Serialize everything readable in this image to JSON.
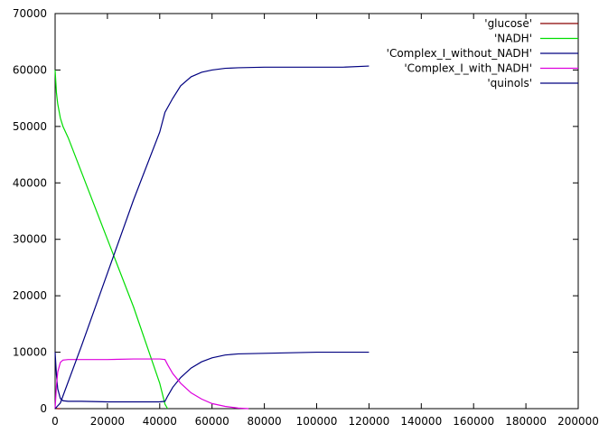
{
  "chart_data": {
    "type": "line",
    "title": "",
    "xlabel": "",
    "ylabel": "",
    "xlim": [
      0,
      200000
    ],
    "ylim": [
      0,
      70000
    ],
    "x_ticks": [
      0,
      20000,
      40000,
      60000,
      80000,
      100000,
      120000,
      140000,
      160000,
      180000,
      200000
    ],
    "y_ticks": [
      0,
      10000,
      20000,
      30000,
      40000,
      50000,
      60000,
      70000
    ],
    "x_tick_labels": [
      "0",
      "20000",
      "40000",
      "60000",
      "80000",
      "100000",
      "120000",
      "140000",
      "160000",
      "180000",
      "200000"
    ],
    "y_tick_labels": [
      "0",
      "10000",
      "20000",
      "30000",
      "40000",
      "50000",
      "60000",
      "70000"
    ],
    "grid": false,
    "legend_position": "top-right",
    "series": [
      {
        "name": "'glucose'",
        "color": "#8b0000",
        "x": [
          0,
          500,
          1000,
          2000
        ],
        "y": [
          100,
          50,
          0,
          0
        ]
      },
      {
        "name": "'NADH'",
        "color": "#00dd00",
        "x": [
          0,
          500,
          1000,
          2000,
          3000,
          5000,
          10000,
          20000,
          30000,
          40000,
          42000,
          43000
        ],
        "y": [
          60000,
          56000,
          54000,
          51500,
          50000,
          48000,
          42000,
          30000,
          18000,
          4500,
          800,
          0
        ]
      },
      {
        "name": "'Complex_I_without_NADH'",
        "color": "#000080",
        "x": [
          0,
          500,
          1000,
          2000,
          3000,
          5000,
          10000,
          20000,
          30000,
          40000,
          42000,
          43000,
          45000,
          48000,
          52000,
          56000,
          60000,
          65000,
          70000,
          80000,
          90000,
          100000,
          110000,
          120000
        ],
        "y": [
          10000,
          6000,
          3500,
          1800,
          1400,
          1300,
          1300,
          1200,
          1200,
          1200,
          1300,
          2200,
          3800,
          5500,
          7200,
          8300,
          9000,
          9500,
          9700,
          9800,
          9900,
          10000,
          10000,
          10000
        ]
      },
      {
        "name": "'Complex_I_with_NADH'",
        "color": "#dd00dd",
        "x": [
          0,
          500,
          1000,
          2000,
          3000,
          5000,
          10000,
          20000,
          30000,
          40000,
          42000,
          43000,
          45000,
          48000,
          52000,
          56000,
          60000,
          65000,
          70000,
          74000
        ],
        "y": [
          0,
          4000,
          6500,
          8200,
          8600,
          8700,
          8700,
          8700,
          8800,
          8800,
          8700,
          7800,
          6200,
          4500,
          2800,
          1700,
          900,
          400,
          100,
          0
        ]
      },
      {
        "name": "'quinols'",
        "color": "#000080",
        "x": [
          0,
          2000,
          10000,
          20000,
          30000,
          40000,
          42000,
          45000,
          48000,
          52000,
          56000,
          60000,
          65000,
          70000,
          80000,
          90000,
          100000,
          110000,
          120000
        ],
        "y": [
          0,
          1000,
          11000,
          24000,
          37000,
          49000,
          52500,
          55000,
          57200,
          58800,
          59600,
          60000,
          60300,
          60400,
          60500,
          60500,
          60500,
          60500,
          60700
        ]
      }
    ]
  }
}
